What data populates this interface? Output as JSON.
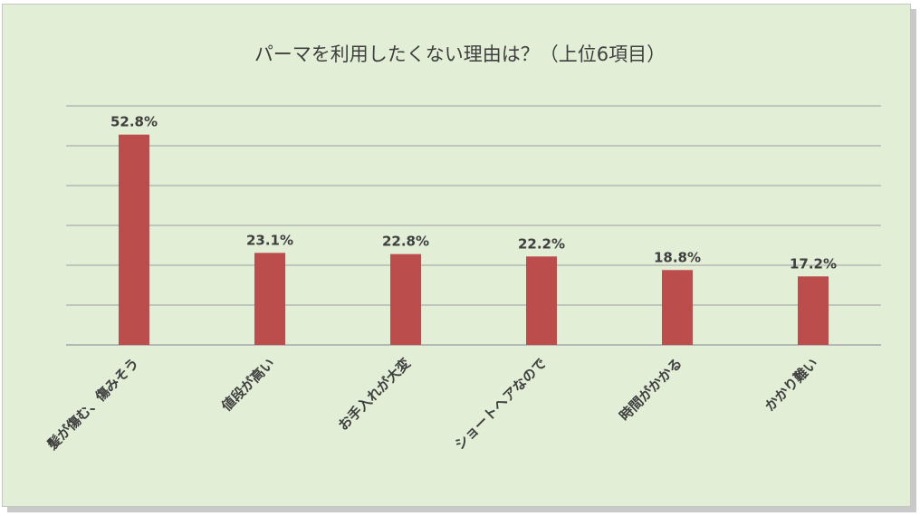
{
  "chart_data": {
    "type": "bar",
    "title": "パーマを利用したくない理由は？（上位6項目）",
    "categories": [
      "髪が傷む、傷みそう",
      "値段が高い",
      "お手入れが大変",
      "ショートヘアなので",
      "時間がかかる",
      "かかり難い"
    ],
    "values": [
      52.8,
      23.1,
      22.8,
      22.2,
      18.8,
      17.2
    ],
    "value_labels": [
      "52.8%",
      "23.1%",
      "22.8%",
      "22.2%",
      "18.8%",
      "17.2%"
    ],
    "ylim": [
      0,
      60
    ],
    "gridlines": true,
    "bar_color": "#bb4d4d",
    "grid_color": "#b4b8b4"
  }
}
